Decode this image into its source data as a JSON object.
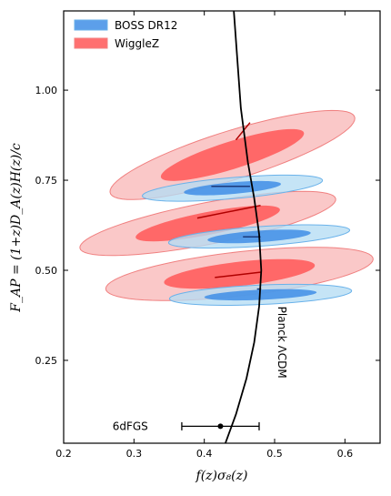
{
  "chart_data": {
    "type": "scatter",
    "xlabel": "f(z)σ₈(z)",
    "ylabel": "F_AP = (1+z)D_A(z)H(z)/c",
    "xlim": [
      0.2,
      0.65
    ],
    "ylim": [
      0.02,
      1.22
    ],
    "x_ticks": [
      0.2,
      0.3,
      0.4,
      0.5,
      0.6
    ],
    "x_tick_labels": [
      "0.2",
      "0.3",
      "0.4",
      "0.5",
      "0.6"
    ],
    "y_ticks": [
      0.25,
      0.5,
      0.75,
      1.0
    ],
    "y_tick_labels": [
      "0.25",
      "0.50",
      "0.75",
      "1.00"
    ],
    "grid": false,
    "legend_position": "top-left",
    "legend": [
      {
        "label": "BOSS DR12",
        "color": "#3a8fe0"
      },
      {
        "label": "WiggleZ",
        "color": "#f44848"
      }
    ],
    "colors": {
      "boss_inner": "#3f8ee6",
      "boss_outer": "#b5dcf4",
      "boss_edge": "#6ab2ea",
      "wigglez_inner": "#ff5757",
      "wigglez_outer": "#f9b8b8",
      "wigglez_edge": "#f08080"
    },
    "series": [
      {
        "name": "WiggleZ",
        "ellipses": [
          {
            "cx": 0.45,
            "cy": 0.49,
            "inner": {
              "a": 0.11,
              "b": 0.033,
              "angle_deg": 13.5
            },
            "outer": {
              "a": 0.195,
              "b": 0.06,
              "angle_deg": 13.5
            }
          },
          {
            "cx": 0.405,
            "cy": 0.63,
            "inner": {
              "a": 0.11,
              "b": 0.03,
              "angle_deg": 22
            },
            "outer": {
              "a": 0.195,
              "b": 0.055,
              "angle_deg": 22
            }
          },
          {
            "cx": 0.44,
            "cy": 0.82,
            "inner": {
              "a": 0.12,
              "b": 0.034,
              "angle_deg": 33.5
            },
            "outer": {
              "a": 0.205,
              "b": 0.06,
              "angle_deg": 33.5
            }
          }
        ]
      },
      {
        "name": "BOSS DR12",
        "ellipses": [
          {
            "cx": 0.48,
            "cy": 0.432,
            "inner": {
              "a": 0.08,
              "b": 0.014,
              "angle_deg": 5
            },
            "outer": {
              "a": 0.13,
              "b": 0.027,
              "angle_deg": 5
            }
          },
          {
            "cx": 0.478,
            "cy": 0.594,
            "inner": {
              "a": 0.074,
              "b": 0.016,
              "angle_deg": 8
            },
            "outer": {
              "a": 0.13,
              "b": 0.027,
              "angle_deg": 8
            }
          },
          {
            "cx": 0.44,
            "cy": 0.728,
            "inner": {
              "a": 0.07,
              "b": 0.016,
              "angle_deg": 10
            },
            "outer": {
              "a": 0.13,
              "b": 0.029,
              "angle_deg": 10
            }
          }
        ]
      }
    ],
    "model_curve": {
      "name": "Planck ΛCDM",
      "x": [
        0.43,
        0.445,
        0.46,
        0.471,
        0.478,
        0.481,
        0.478,
        0.471,
        0.462,
        0.452,
        0.442
      ],
      "y": [
        0.02,
        0.1,
        0.2,
        0.3,
        0.4,
        0.5,
        0.6,
        0.7,
        0.8,
        0.95,
        1.22
      ]
    },
    "model_connectors": [
      {
        "x": [
          0.415,
          0.481
        ],
        "y": [
          0.48,
          0.495
        ],
        "color": "#b00000"
      },
      {
        "x": [
          0.39,
          0.48
        ],
        "y": [
          0.645,
          0.68
        ],
        "color": "#b00000"
      },
      {
        "x": [
          0.445,
          0.465
        ],
        "y": [
          0.862,
          0.91
        ],
        "color": "#b00000"
      },
      {
        "x": [
          0.475,
          0.481
        ],
        "y": [
          0.448,
          0.448
        ],
        "color": "#1b3a7a"
      },
      {
        "x": [
          0.455,
          0.48
        ],
        "y": [
          0.593,
          0.593
        ],
        "color": "#1b3a7a"
      },
      {
        "x": [
          0.41,
          0.465
        ],
        "y": [
          0.733,
          0.733
        ],
        "color": "#1b3a7a"
      }
    ],
    "errorbar": {
      "label": "6dFGS",
      "x": 0.423,
      "y": 0.067,
      "xerr_low": 0.055,
      "xerr_high": 0.055
    },
    "annotations": [
      {
        "text": "Planck ΛCDM",
        "x": 0.505,
        "y": 0.3,
        "rotation_deg": 90
      },
      {
        "text": "6dFGS",
        "x": 0.32,
        "y": 0.067
      }
    ]
  }
}
